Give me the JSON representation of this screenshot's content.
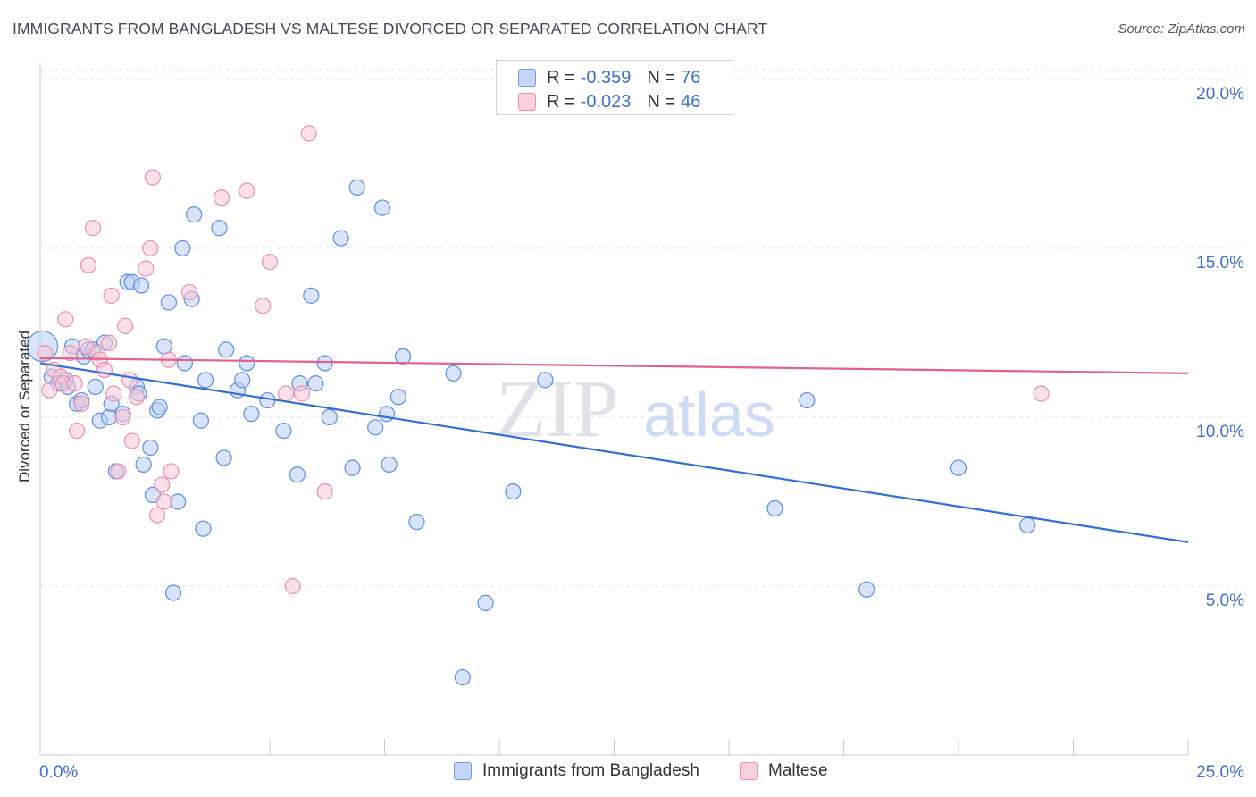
{
  "header": {
    "title": "IMMIGRANTS FROM BANGLADESH VS MALTESE DIVORCED OR SEPARATED CORRELATION CHART",
    "source": "Source: ZipAtlas.com"
  },
  "watermark": {
    "zip": "ZIP",
    "atlas": "atlas"
  },
  "legend_top": {
    "rows": [
      {
        "r_label": "R = ",
        "r_value": "-0.359",
        "n_label": "N = ",
        "n_value": "76"
      },
      {
        "r_label": "R = ",
        "r_value": "-0.023",
        "n_label": "N = ",
        "n_value": "46"
      }
    ]
  },
  "chart_data": {
    "type": "scatter",
    "title": "IMMIGRANTS FROM BANGLADESH VS MALTESE DIVORCED OR SEPARATED CORRELATION CHART",
    "xlabel": "",
    "ylabel": "Divorced or Separated",
    "xlim": [
      0,
      25
    ],
    "ylim": [
      0,
      20.5
    ],
    "x_tick_labels": [
      "0.0%",
      "25.0%"
    ],
    "y_tick_values": [
      5,
      10,
      15,
      20
    ],
    "y_tick_labels": [
      "5.0%",
      "10.0%",
      "15.0%",
      "20.0%"
    ],
    "grid": true,
    "legend_position": "bottom",
    "series": [
      {
        "name": "Immigrants from Bangladesh",
        "color": "#5b8ee6",
        "fill": "#b9cdf3",
        "trend": {
          "x": [
            0,
            25
          ],
          "y": [
            11.6,
            6.3
          ],
          "color": "#2f6fd6"
        },
        "points": [
          [
            0.05,
            12.1
          ],
          [
            0.25,
            11.2
          ],
          [
            0.4,
            11.0
          ],
          [
            0.55,
            11.1
          ],
          [
            0.6,
            10.9
          ],
          [
            0.7,
            12.1
          ],
          [
            0.8,
            10.4
          ],
          [
            0.9,
            10.5
          ],
          [
            0.95,
            11.8
          ],
          [
            1.05,
            12.0
          ],
          [
            1.15,
            12.0
          ],
          [
            1.2,
            10.9
          ],
          [
            1.3,
            9.9
          ],
          [
            1.4,
            12.2
          ],
          [
            1.5,
            10.0
          ],
          [
            1.55,
            10.4
          ],
          [
            1.65,
            8.4
          ],
          [
            1.8,
            10.1
          ],
          [
            1.9,
            14.0
          ],
          [
            2.0,
            14.0
          ],
          [
            2.1,
            10.9
          ],
          [
            2.15,
            10.7
          ],
          [
            2.2,
            13.9
          ],
          [
            2.25,
            8.6
          ],
          [
            2.4,
            9.1
          ],
          [
            2.45,
            7.7
          ],
          [
            2.55,
            10.2
          ],
          [
            2.6,
            10.3
          ],
          [
            2.7,
            12.1
          ],
          [
            2.8,
            13.4
          ],
          [
            2.9,
            4.8
          ],
          [
            3.0,
            7.5
          ],
          [
            3.1,
            15.0
          ],
          [
            3.15,
            11.6
          ],
          [
            3.3,
            13.5
          ],
          [
            3.35,
            16.0
          ],
          [
            3.5,
            9.9
          ],
          [
            3.55,
            6.7
          ],
          [
            3.6,
            11.1
          ],
          [
            3.9,
            15.6
          ],
          [
            4.0,
            8.8
          ],
          [
            4.05,
            12.0
          ],
          [
            4.3,
            10.8
          ],
          [
            4.4,
            11.1
          ],
          [
            4.5,
            11.6
          ],
          [
            4.6,
            10.1
          ],
          [
            4.95,
            10.5
          ],
          [
            5.3,
            9.6
          ],
          [
            5.6,
            8.3
          ],
          [
            5.65,
            11.0
          ],
          [
            5.9,
            13.6
          ],
          [
            6.0,
            11.0
          ],
          [
            6.2,
            11.6
          ],
          [
            6.3,
            10.0
          ],
          [
            6.55,
            15.3
          ],
          [
            6.8,
            8.5
          ],
          [
            6.9,
            16.8
          ],
          [
            7.3,
            9.7
          ],
          [
            7.45,
            16.2
          ],
          [
            7.55,
            10.1
          ],
          [
            7.6,
            8.6
          ],
          [
            7.8,
            10.6
          ],
          [
            7.9,
            11.8
          ],
          [
            8.2,
            6.9
          ],
          [
            9.0,
            11.3
          ],
          [
            9.2,
            2.3
          ],
          [
            9.7,
            4.5
          ],
          [
            10.3,
            7.8
          ],
          [
            11.0,
            11.1
          ],
          [
            16.0,
            7.3
          ],
          [
            16.7,
            10.5
          ],
          [
            18.0,
            4.9
          ],
          [
            20.0,
            8.5
          ],
          [
            21.5,
            6.8
          ]
        ]
      },
      {
        "name": "Maltese",
        "color": "#ec8fae",
        "fill": "#f6c6d6",
        "trend": {
          "x": [
            0,
            25
          ],
          "y": [
            11.75,
            11.3
          ],
          "color": "#e0608e"
        },
        "points": [
          [
            0.1,
            11.9
          ],
          [
            0.2,
            10.8
          ],
          [
            0.3,
            11.4
          ],
          [
            0.45,
            11.2
          ],
          [
            0.5,
            11.0
          ],
          [
            0.55,
            12.9
          ],
          [
            0.65,
            11.9
          ],
          [
            0.75,
            11.0
          ],
          [
            0.8,
            9.6
          ],
          [
            0.9,
            10.4
          ],
          [
            1.0,
            12.1
          ],
          [
            1.05,
            14.5
          ],
          [
            1.15,
            15.6
          ],
          [
            1.25,
            11.9
          ],
          [
            1.3,
            11.7
          ],
          [
            1.4,
            11.4
          ],
          [
            1.5,
            12.2
          ],
          [
            1.55,
            13.6
          ],
          [
            1.6,
            10.7
          ],
          [
            1.7,
            8.4
          ],
          [
            1.8,
            10.0
          ],
          [
            1.85,
            12.7
          ],
          [
            1.95,
            11.1
          ],
          [
            2.0,
            9.3
          ],
          [
            2.1,
            10.6
          ],
          [
            2.3,
            14.4
          ],
          [
            2.4,
            15.0
          ],
          [
            2.45,
            17.1
          ],
          [
            2.55,
            7.1
          ],
          [
            2.65,
            8.0
          ],
          [
            2.7,
            7.5
          ],
          [
            2.8,
            11.7
          ],
          [
            2.85,
            8.4
          ],
          [
            3.25,
            13.7
          ],
          [
            3.95,
            16.5
          ],
          [
            4.5,
            16.7
          ],
          [
            4.85,
            13.3
          ],
          [
            5.0,
            14.6
          ],
          [
            5.35,
            10.7
          ],
          [
            5.5,
            5.0
          ],
          [
            5.7,
            10.7
          ],
          [
            5.85,
            18.4
          ],
          [
            6.2,
            7.8
          ],
          [
            21.8,
            10.7
          ]
        ]
      }
    ]
  }
}
